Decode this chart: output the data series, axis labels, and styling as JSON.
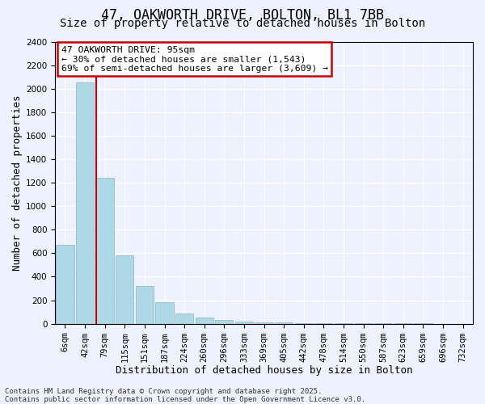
{
  "title_line1": "47, OAKWORTH DRIVE, BOLTON, BL1 7BB",
  "title_line2": "Size of property relative to detached houses in Bolton",
  "xlabel": "Distribution of detached houses by size in Bolton",
  "ylabel": "Number of detached properties",
  "footnote": "Contains HM Land Registry data © Crown copyright and database right 2025.\nContains public sector information licensed under the Open Government Licence v3.0.",
  "bin_labels": [
    "6sqm",
    "42sqm",
    "79sqm",
    "115sqm",
    "151sqm",
    "187sqm",
    "224sqm",
    "260sqm",
    "296sqm",
    "333sqm",
    "369sqm",
    "405sqm",
    "442sqm",
    "478sqm",
    "514sqm",
    "550sqm",
    "587sqm",
    "623sqm",
    "659sqm",
    "696sqm",
    "732sqm"
  ],
  "bar_values": [
    670,
    2050,
    1240,
    580,
    320,
    185,
    90,
    55,
    30,
    20,
    10,
    8,
    5,
    4,
    3,
    2,
    1,
    1,
    1,
    0,
    0
  ],
  "bar_color": "#add8e6",
  "bar_edge_color": "#8ab4cc",
  "property_line_bin": 2,
  "annotation_text": "47 OAKWORTH DRIVE: 95sqm\n← 30% of detached houses are smaller (1,543)\n69% of semi-detached houses are larger (3,609) →",
  "annotation_box_color": "#ffffff",
  "annotation_box_edge": "#cc0000",
  "vline_color": "#cc0000",
  "ylim": [
    0,
    2400
  ],
  "yticks": [
    0,
    200,
    400,
    600,
    800,
    1000,
    1200,
    1400,
    1600,
    1800,
    2000,
    2200,
    2400
  ],
  "bg_color": "#eef2ff",
  "grid_color": "#ffffff",
  "title_fontsize": 12,
  "subtitle_fontsize": 10,
  "label_fontsize": 9,
  "tick_fontsize": 7.5,
  "footnote_fontsize": 6.5
}
